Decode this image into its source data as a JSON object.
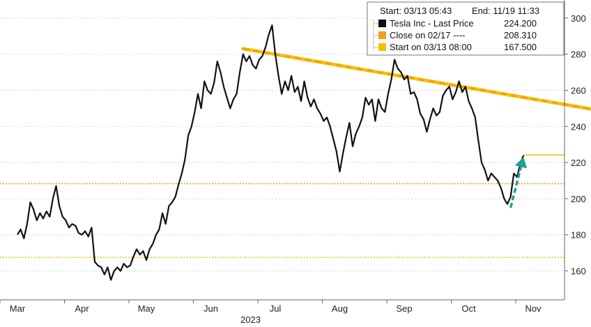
{
  "chart_data": {
    "type": "line",
    "header": {
      "start": "Start: 03/13 05:43",
      "end": "End: 11/19 11:33"
    },
    "legend": [
      {
        "label": "Tesla Inc - Last Price",
        "value": "224.200",
        "color": "#111111"
      },
      {
        "label": "Close on 02/17 ----",
        "value": "208.310",
        "color": "#f0a020"
      },
      {
        "label": "Start on 03/13 08:00",
        "value": "167.500",
        "color": "#f2c200"
      }
    ],
    "xlabel_year": "2023",
    "x_ticks": [
      "Mar",
      "Apr",
      "May",
      "Jun",
      "Jul",
      "Aug",
      "Sep",
      "Oct",
      "Nov"
    ],
    "y_ticks": [
      "160",
      "180",
      "200",
      "220",
      "240",
      "260",
      "280",
      "300"
    ],
    "ylim": [
      144,
      310
    ],
    "hlines": [
      {
        "name": "Close on 02/17",
        "value": 208.31,
        "color": "#f0a020"
      },
      {
        "name": "Start on 03/13 08:00",
        "value": 167.5,
        "color": "#f2c200"
      }
    ],
    "last_price_line": {
      "value": 224.2,
      "color": "#f2c200"
    },
    "trendline": {
      "from": {
        "x": 3.5,
        "y": 283
      },
      "to": {
        "x": 9.0,
        "y": 249
      },
      "color": "#f0a020"
    },
    "arrow": {
      "from": {
        "x": 7.65,
        "y": 195
      },
      "to": {
        "x": 7.85,
        "y": 223
      },
      "color": "#20a090"
    },
    "series": [
      {
        "values": [
          {
            "x": 0.0,
            "y": 180
          },
          {
            "x": 0.05,
            "y": 183
          },
          {
            "x": 0.1,
            "y": 178
          },
          {
            "x": 0.15,
            "y": 186
          },
          {
            "x": 0.2,
            "y": 198
          },
          {
            "x": 0.25,
            "y": 194
          },
          {
            "x": 0.3,
            "y": 188
          },
          {
            "x": 0.35,
            "y": 192
          },
          {
            "x": 0.4,
            "y": 189
          },
          {
            "x": 0.45,
            "y": 193
          },
          {
            "x": 0.5,
            "y": 190
          },
          {
            "x": 0.55,
            "y": 200
          },
          {
            "x": 0.6,
            "y": 207
          },
          {
            "x": 0.65,
            "y": 196
          },
          {
            "x": 0.7,
            "y": 190
          },
          {
            "x": 0.75,
            "y": 188
          },
          {
            "x": 0.8,
            "y": 184
          },
          {
            "x": 0.85,
            "y": 186
          },
          {
            "x": 0.9,
            "y": 185
          },
          {
            "x": 0.95,
            "y": 181
          },
          {
            "x": 1.0,
            "y": 180
          },
          {
            "x": 1.05,
            "y": 182
          },
          {
            "x": 1.1,
            "y": 179
          },
          {
            "x": 1.15,
            "y": 184
          },
          {
            "x": 1.2,
            "y": 165
          },
          {
            "x": 1.25,
            "y": 163
          },
          {
            "x": 1.3,
            "y": 162
          },
          {
            "x": 1.35,
            "y": 158
          },
          {
            "x": 1.4,
            "y": 162
          },
          {
            "x": 1.45,
            "y": 155
          },
          {
            "x": 1.5,
            "y": 160
          },
          {
            "x": 1.55,
            "y": 162
          },
          {
            "x": 1.6,
            "y": 160
          },
          {
            "x": 1.65,
            "y": 164
          },
          {
            "x": 1.7,
            "y": 162
          },
          {
            "x": 1.75,
            "y": 163
          },
          {
            "x": 1.8,
            "y": 168
          },
          {
            "x": 1.85,
            "y": 172
          },
          {
            "x": 1.9,
            "y": 169
          },
          {
            "x": 1.95,
            "y": 171
          },
          {
            "x": 2.0,
            "y": 166
          },
          {
            "x": 2.05,
            "y": 172
          },
          {
            "x": 2.1,
            "y": 175
          },
          {
            "x": 2.15,
            "y": 180
          },
          {
            "x": 2.2,
            "y": 183
          },
          {
            "x": 2.25,
            "y": 192
          },
          {
            "x": 2.3,
            "y": 186
          },
          {
            "x": 2.35,
            "y": 196
          },
          {
            "x": 2.4,
            "y": 198
          },
          {
            "x": 2.45,
            "y": 201
          },
          {
            "x": 2.5,
            "y": 208
          },
          {
            "x": 2.55,
            "y": 214
          },
          {
            "x": 2.6,
            "y": 222
          },
          {
            "x": 2.65,
            "y": 235
          },
          {
            "x": 2.7,
            "y": 240
          },
          {
            "x": 2.75,
            "y": 248
          },
          {
            "x": 2.8,
            "y": 258
          },
          {
            "x": 2.85,
            "y": 250
          },
          {
            "x": 2.9,
            "y": 265
          },
          {
            "x": 2.95,
            "y": 260
          },
          {
            "x": 3.0,
            "y": 258
          },
          {
            "x": 3.05,
            "y": 264
          },
          {
            "x": 3.1,
            "y": 276
          },
          {
            "x": 3.15,
            "y": 270
          },
          {
            "x": 3.2,
            "y": 262
          },
          {
            "x": 3.25,
            "y": 256
          },
          {
            "x": 3.3,
            "y": 250
          },
          {
            "x": 3.35,
            "y": 255
          },
          {
            "x": 3.4,
            "y": 258
          },
          {
            "x": 3.45,
            "y": 270
          },
          {
            "x": 3.5,
            "y": 280
          },
          {
            "x": 3.55,
            "y": 276
          },
          {
            "x": 3.6,
            "y": 279
          },
          {
            "x": 3.65,
            "y": 274
          },
          {
            "x": 3.7,
            "y": 272
          },
          {
            "x": 3.75,
            "y": 277
          },
          {
            "x": 3.8,
            "y": 279
          },
          {
            "x": 3.85,
            "y": 284
          },
          {
            "x": 3.9,
            "y": 291
          },
          {
            "x": 3.95,
            "y": 296
          },
          {
            "x": 4.0,
            "y": 280
          },
          {
            "x": 4.05,
            "y": 268
          },
          {
            "x": 4.1,
            "y": 258
          },
          {
            "x": 4.15,
            "y": 265
          },
          {
            "x": 4.2,
            "y": 260
          },
          {
            "x": 4.25,
            "y": 268
          },
          {
            "x": 4.3,
            "y": 259
          },
          {
            "x": 4.35,
            "y": 262
          },
          {
            "x": 4.4,
            "y": 254
          },
          {
            "x": 4.45,
            "y": 265
          },
          {
            "x": 4.5,
            "y": 256
          },
          {
            "x": 4.55,
            "y": 251
          },
          {
            "x": 4.6,
            "y": 255
          },
          {
            "x": 4.65,
            "y": 250
          },
          {
            "x": 4.7,
            "y": 247
          },
          {
            "x": 4.75,
            "y": 243
          },
          {
            "x": 4.8,
            "y": 245
          },
          {
            "x": 4.85,
            "y": 240
          },
          {
            "x": 4.9,
            "y": 233
          },
          {
            "x": 4.95,
            "y": 226
          },
          {
            "x": 5.0,
            "y": 215
          },
          {
            "x": 5.05,
            "y": 225
          },
          {
            "x": 5.1,
            "y": 234
          },
          {
            "x": 5.15,
            "y": 242
          },
          {
            "x": 5.2,
            "y": 229
          },
          {
            "x": 5.25,
            "y": 236
          },
          {
            "x": 5.3,
            "y": 240
          },
          {
            "x": 5.35,
            "y": 245
          },
          {
            "x": 5.4,
            "y": 256
          },
          {
            "x": 5.45,
            "y": 252
          },
          {
            "x": 5.5,
            "y": 255
          },
          {
            "x": 5.55,
            "y": 243
          },
          {
            "x": 5.6,
            "y": 255
          },
          {
            "x": 5.65,
            "y": 250
          },
          {
            "x": 5.7,
            "y": 248
          },
          {
            "x": 5.75,
            "y": 258
          },
          {
            "x": 5.8,
            "y": 266
          },
          {
            "x": 5.85,
            "y": 277
          },
          {
            "x": 5.9,
            "y": 272
          },
          {
            "x": 5.95,
            "y": 270
          },
          {
            "x": 6.0,
            "y": 266
          },
          {
            "x": 6.05,
            "y": 268
          },
          {
            "x": 6.1,
            "y": 258
          },
          {
            "x": 6.15,
            "y": 259
          },
          {
            "x": 6.2,
            "y": 255
          },
          {
            "x": 6.25,
            "y": 247
          },
          {
            "x": 6.3,
            "y": 244
          },
          {
            "x": 6.35,
            "y": 237
          },
          {
            "x": 6.4,
            "y": 244
          },
          {
            "x": 6.45,
            "y": 250
          },
          {
            "x": 6.5,
            "y": 246
          },
          {
            "x": 6.55,
            "y": 248
          },
          {
            "x": 6.6,
            "y": 257
          },
          {
            "x": 6.65,
            "y": 260
          },
          {
            "x": 6.7,
            "y": 262
          },
          {
            "x": 6.75,
            "y": 255
          },
          {
            "x": 6.8,
            "y": 259
          },
          {
            "x": 6.85,
            "y": 265
          },
          {
            "x": 6.9,
            "y": 259
          },
          {
            "x": 6.95,
            "y": 262
          },
          {
            "x": 7.0,
            "y": 254
          },
          {
            "x": 7.05,
            "y": 250
          },
          {
            "x": 7.1,
            "y": 245
          },
          {
            "x": 7.15,
            "y": 232
          },
          {
            "x": 7.2,
            "y": 220
          },
          {
            "x": 7.25,
            "y": 216
          },
          {
            "x": 7.3,
            "y": 210
          },
          {
            "x": 7.35,
            "y": 214
          },
          {
            "x": 7.4,
            "y": 212
          },
          {
            "x": 7.45,
            "y": 210
          },
          {
            "x": 7.5,
            "y": 206
          },
          {
            "x": 7.55,
            "y": 200
          },
          {
            "x": 7.6,
            "y": 197
          },
          {
            "x": 7.65,
            "y": 201
          },
          {
            "x": 7.7,
            "y": 214
          },
          {
            "x": 7.75,
            "y": 212
          },
          {
            "x": 7.8,
            "y": 219
          },
          {
            "x": 7.85,
            "y": 224
          }
        ]
      }
    ]
  }
}
